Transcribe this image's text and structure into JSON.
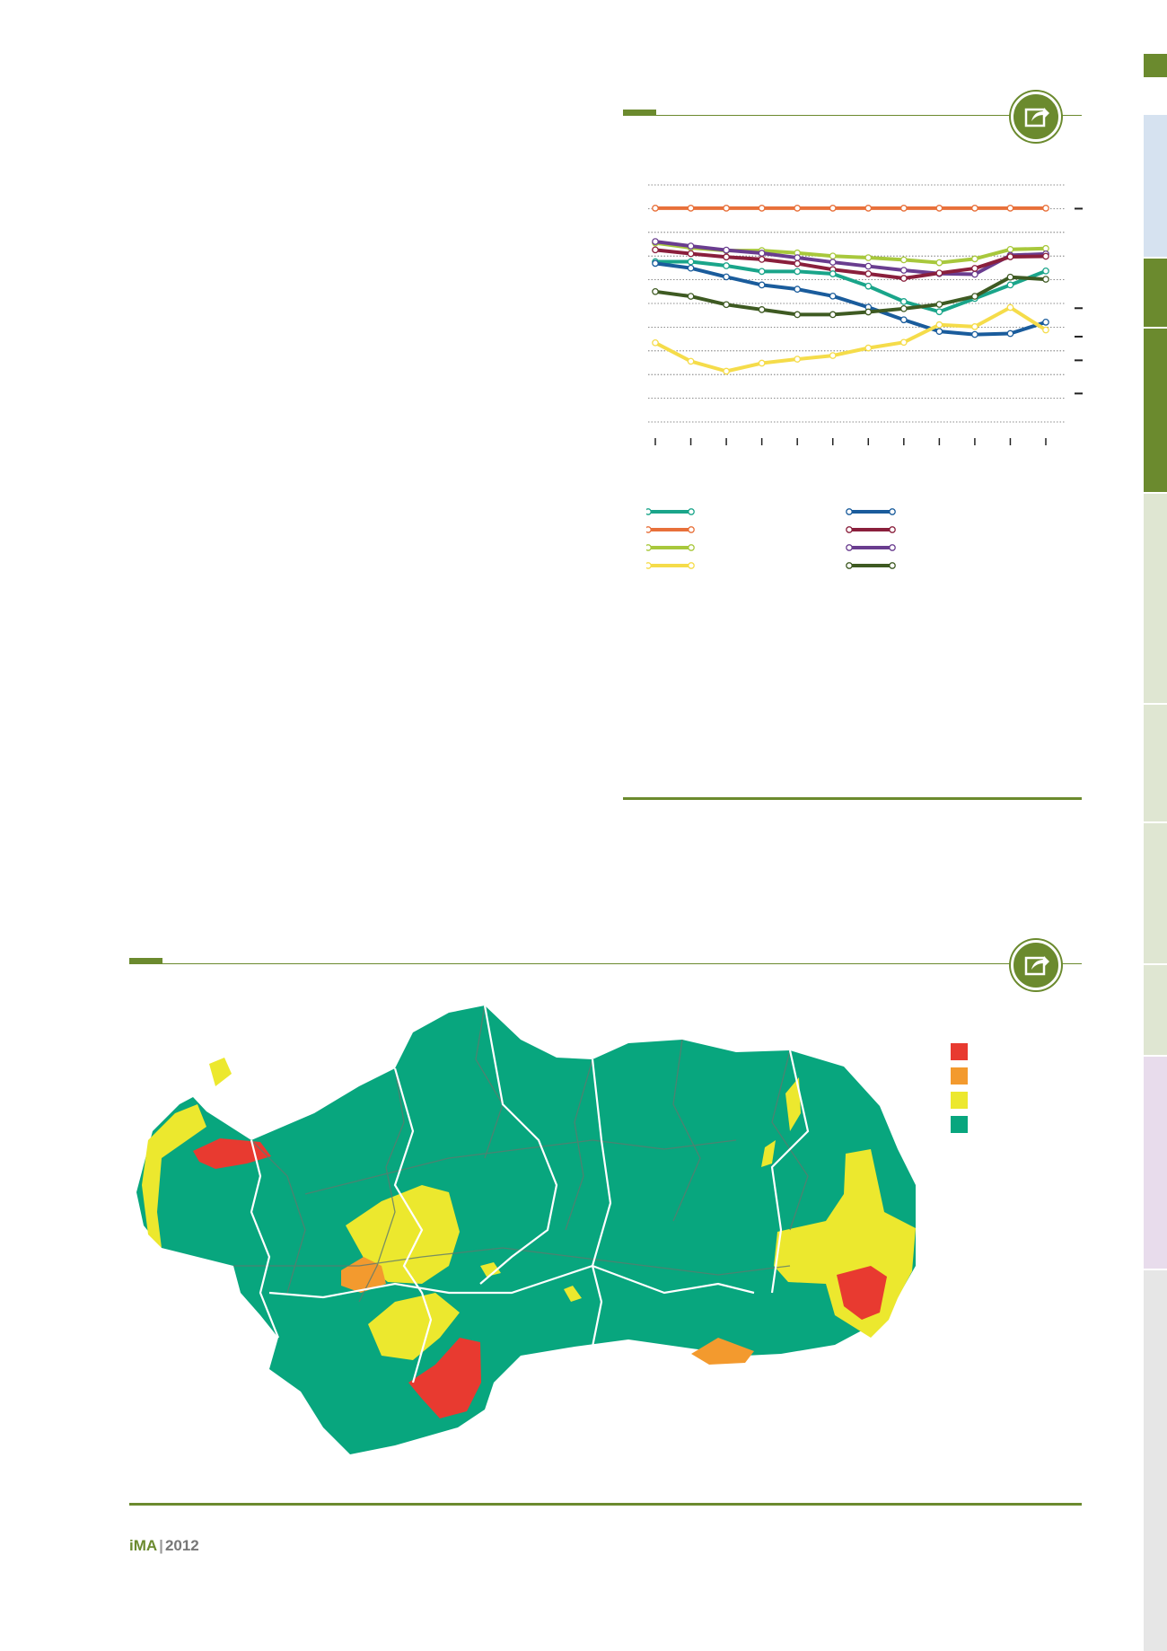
{
  "colors": {
    "accent": "#6b8a2e",
    "tab_light_blue": "#d6e2f0",
    "tab_green": "#6b8a2e",
    "tab_light_green": "#dfe6d2",
    "tab_lavender": "#e8dcec",
    "tab_grey": "#e6e6e6"
  },
  "icons": {
    "share": "share-icon"
  },
  "footer": {
    "logo": "iMA",
    "year": "2012"
  },
  "chart_data": {
    "type": "line",
    "title": "",
    "xlabel": "",
    "ylabel": "",
    "x": [
      1,
      2,
      3,
      4,
      5,
      6,
      7,
      8,
      9,
      10,
      11,
      12
    ],
    "ylim": [
      0,
      100
    ],
    "grid": true,
    "series": [
      {
        "color": "#e8703a",
        "values": [
          90.2,
          90.2,
          90.2,
          90.2,
          90.2,
          90.2,
          90.2,
          90.2,
          90.2,
          90.2,
          90.2,
          90.2
        ]
      },
      {
        "color": "#a8c83c",
        "values": [
          75.5,
          73.5,
          72.3,
          72.3,
          71.3,
          70.0,
          69.3,
          68.4,
          67.2,
          68.8,
          72.8,
          73.2
        ]
      },
      {
        "color": "#6a3d8f",
        "values": [
          76.1,
          74.2,
          72.5,
          71.2,
          69.3,
          67.4,
          65.7,
          64.0,
          62.6,
          62.3,
          70.3,
          70.9
        ]
      },
      {
        "color": "#8a1f3c",
        "values": [
          72.6,
          71.0,
          69.6,
          68.6,
          66.8,
          64.3,
          62.5,
          60.6,
          62.8,
          64.8,
          69.7,
          69.9
        ]
      },
      {
        "color": "#1aa58a",
        "values": [
          67.6,
          67.6,
          65.9,
          63.5,
          63.5,
          62.5,
          57.3,
          50.8,
          46.5,
          52.1,
          57.8,
          63.7
        ]
      },
      {
        "color": "#1a5c9c",
        "values": [
          66.9,
          64.9,
          61.2,
          57.8,
          56.0,
          53.1,
          48.4,
          43.1,
          38.2,
          36.9,
          37.3,
          42.1
        ]
      },
      {
        "color": "#3e5a22",
        "values": [
          55.0,
          53.0,
          49.5,
          47.4,
          45.3,
          45.3,
          46.4,
          47.8,
          49.6,
          53.0,
          61.1,
          60.2
        ]
      },
      {
        "color": "#f5dc4a",
        "values": [
          33.4,
          25.6,
          21.4,
          24.8,
          26.5,
          28.0,
          31.2,
          33.6,
          41.0,
          40.2,
          48.3,
          38.8
        ]
      }
    ]
  },
  "map": {
    "legend": [
      {
        "color": "#e83a30"
      },
      {
        "color": "#f39a2e"
      },
      {
        "color": "#ece82e"
      },
      {
        "color": "#08a67e"
      }
    ]
  }
}
